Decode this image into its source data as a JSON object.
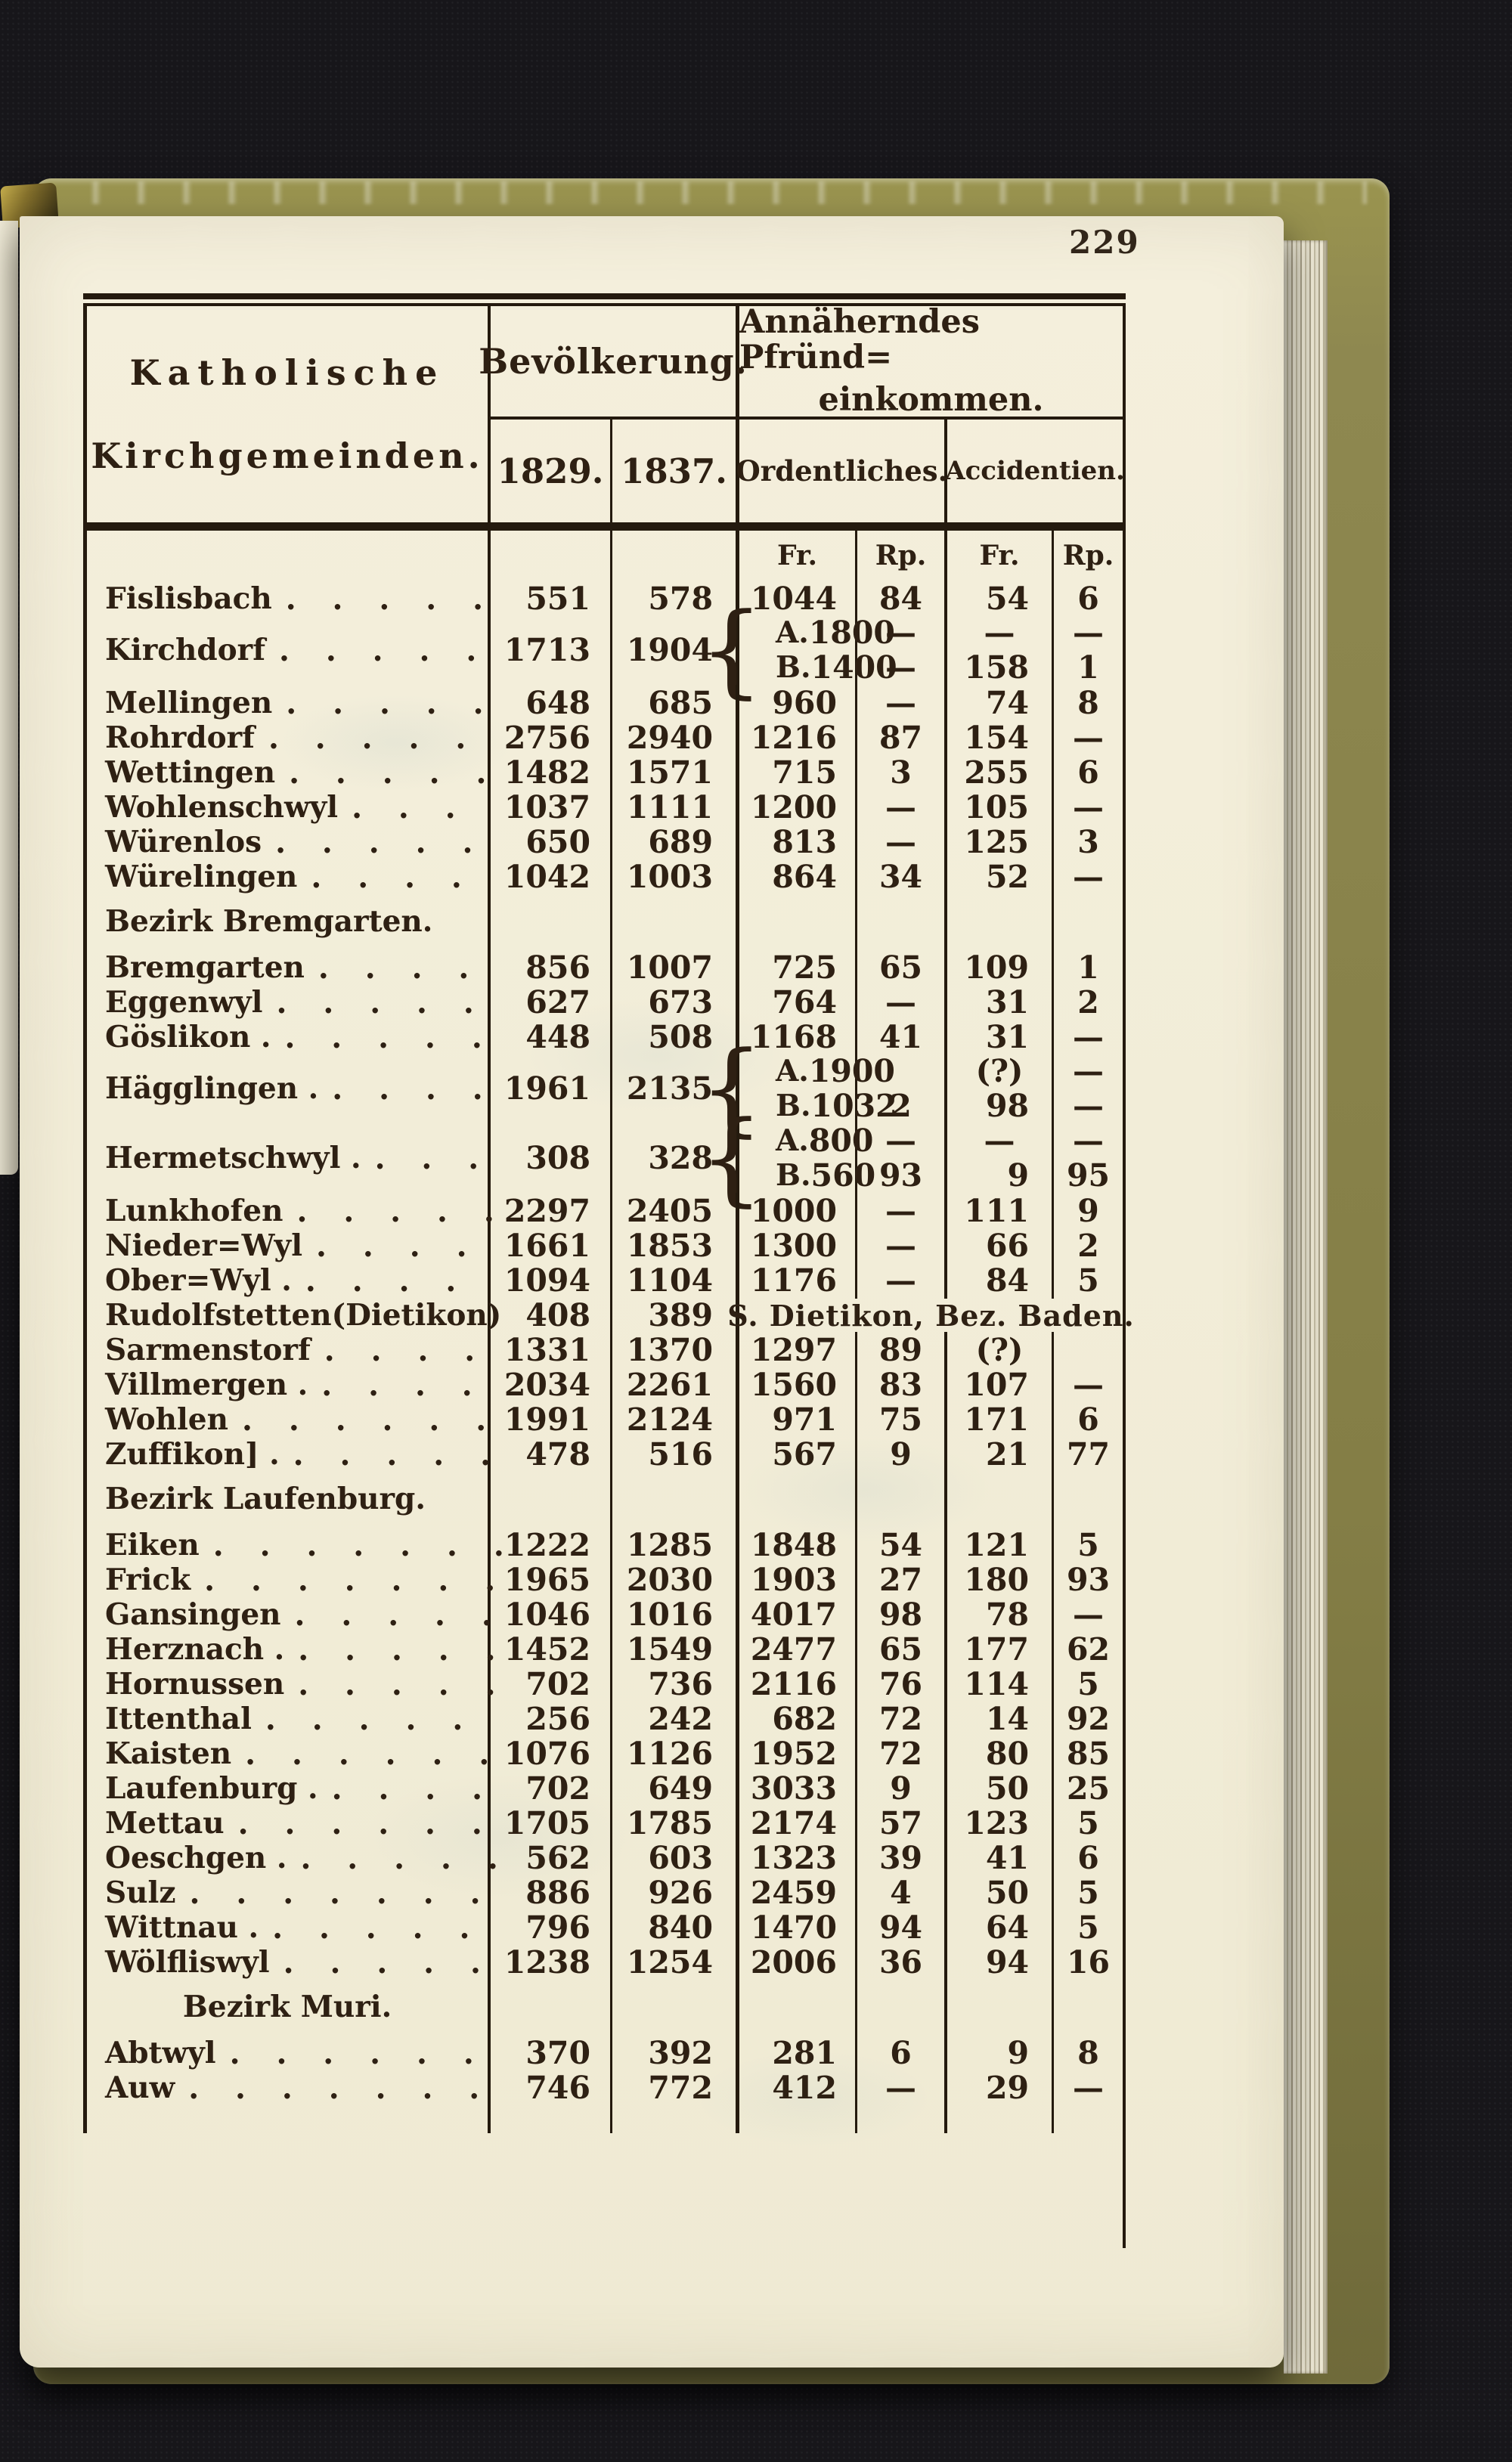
{
  "page_number": "229",
  "colors": {
    "ink": "#2e2013",
    "paper": "#f2edd8",
    "cover_olive": "#8e8850",
    "background": "#17161a"
  },
  "table": {
    "header": {
      "parishes_line1": "Katholische",
      "parishes_line2": "Kirchgemeinden.",
      "population": "Bevölkerung.",
      "income_line1": "Annäherndes Pfründ=",
      "income_line2": "einkommen.",
      "year1": "1829.",
      "year2": "1837.",
      "sub1": "Ordentliches.",
      "sub2": "Accidentien.",
      "units": [
        "Fr.",
        "Rp.",
        "Fr.",
        "Rp."
      ]
    },
    "rows": [
      {
        "type": "row",
        "name": "Fislisbach",
        "dots": ". . . . .",
        "p1829": "551",
        "p1837": "578",
        "ord_fr": "1044",
        "ord_rp": "84",
        "acc_fr": "54",
        "acc_rp": "6"
      },
      {
        "type": "split",
        "name": "Kirchdorf",
        "dots": ". . . . .",
        "p1829": "1713",
        "p1837": "1904",
        "sub": [
          {
            "label": "A.",
            "ord_fr": "1800",
            "ord_rp": "—",
            "acc_fr": "—",
            "acc_rp": "—"
          },
          {
            "label": "B.",
            "ord_fr": "1400",
            "ord_rp": "—",
            "acc_fr": "158",
            "acc_rp": "1"
          }
        ]
      },
      {
        "type": "row",
        "name": "Mellingen",
        "dots": ". . . . .",
        "p1829": "648",
        "p1837": "685",
        "ord_fr": "960",
        "ord_rp": "—",
        "acc_fr": "74",
        "acc_rp": "8"
      },
      {
        "type": "row",
        "name": "Rohrdorf",
        "dots": ". . . . .",
        "p1829": "2756",
        "p1837": "2940",
        "ord_fr": "1216",
        "ord_rp": "87",
        "acc_fr": "154",
        "acc_rp": "—"
      },
      {
        "type": "row",
        "name": "Wettingen",
        "dots": ". . . . .",
        "p1829": "1482",
        "p1837": "1571",
        "ord_fr": "715",
        "ord_rp": "3",
        "acc_fr": "255",
        "acc_rp": "6"
      },
      {
        "type": "row",
        "name": "Wohlenschwyl",
        "dots": ". . .",
        "p1829": "1037",
        "p1837": "1111",
        "ord_fr": "1200",
        "ord_rp": "—",
        "acc_fr": "105",
        "acc_rp": "—"
      },
      {
        "type": "row",
        "name": "Würenlos",
        "dots": ". . . . .",
        "p1829": "650",
        "p1837": "689",
        "ord_fr": "813",
        "ord_rp": "—",
        "acc_fr": "125",
        "acc_rp": "3"
      },
      {
        "type": "row",
        "name": "Würelingen",
        "dots": ". . . .",
        "p1829": "1042",
        "p1837": "1003",
        "ord_fr": "864",
        "ord_rp": "34",
        "acc_fr": "52",
        "acc_rp": "—"
      },
      {
        "type": "section",
        "title": "Bezirk Bremgarten."
      },
      {
        "type": "row",
        "name": "Bremgarten",
        "dots": ". . . .",
        "p1829": "856",
        "p1837": "1007",
        "ord_fr": "725",
        "ord_rp": "65",
        "acc_fr": "109",
        "acc_rp": "1"
      },
      {
        "type": "row",
        "name": "Eggenwyl",
        "dots": ". . . . .",
        "p1829": "627",
        "p1837": "673",
        "ord_fr": "764",
        "ord_rp": "—",
        "acc_fr": "31",
        "acc_rp": "2"
      },
      {
        "type": "row",
        "name": "Göslikon .",
        "dots": ". . . . .",
        "p1829": "448",
        "p1837": "508",
        "ord_fr": "1168",
        "ord_rp": "41",
        "acc_fr": "31",
        "acc_rp": "—"
      },
      {
        "type": "split",
        "name": "Hägglingen .",
        "dots": ". . . .",
        "p1829": "1961",
        "p1837": "2135",
        "sub": [
          {
            "label": "A.",
            "ord_fr": "1900",
            "ord_rp": "",
            "acc_fr": "(?)",
            "acc_rp": "—"
          },
          {
            "label": "B.",
            "ord_fr": "1032",
            "ord_rp": "2",
            "acc_fr": "98",
            "acc_rp": "—"
          }
        ]
      },
      {
        "type": "split",
        "name": "Hermetschwyl .",
        "dots": ". . .",
        "p1829": "308",
        "p1837": "328",
        "sub": [
          {
            "label": "A.",
            "ord_fr": "800",
            "ord_rp": "—",
            "acc_fr": "—",
            "acc_rp": "—"
          },
          {
            "label": "B.",
            "ord_fr": "560",
            "ord_rp": "93",
            "acc_fr": "9",
            "acc_rp": "95"
          }
        ]
      },
      {
        "type": "row",
        "name": "Lunkhofen",
        "dots": ". . . . .",
        "p1829": "2297",
        "p1837": "2405",
        "ord_fr": "1000",
        "ord_rp": "—",
        "acc_fr": "111",
        "acc_rp": "9"
      },
      {
        "type": "row",
        "name": "Nieder=Wyl",
        "dots": ". . . .",
        "p1829": "1661",
        "p1837": "1853",
        "ord_fr": "1300",
        "ord_rp": "—",
        "acc_fr": "66",
        "acc_rp": "2"
      },
      {
        "type": "row",
        "name": "Ober=Wyl .",
        "dots": ". . . .",
        "p1829": "1094",
        "p1837": "1104",
        "ord_fr": "1176",
        "ord_rp": "—",
        "acc_fr": "84",
        "acc_rp": "5"
      },
      {
        "type": "span",
        "name": "Rudolfstetten(Dietikon)",
        "dots": "",
        "p1829": "408",
        "p1837": "389",
        "note": "S. Dietikon, Bez. Baden."
      },
      {
        "type": "row",
        "name": "Sarmenstorf",
        "dots": ". . . .",
        "p1829": "1331",
        "p1837": "1370",
        "ord_fr": "1297",
        "ord_rp": "89",
        "acc_fr": "(?)",
        "acc_rp": ""
      },
      {
        "type": "row",
        "name": "Villmergen .",
        "dots": ". . . .",
        "p1829": "2034",
        "p1837": "2261",
        "ord_fr": "1560",
        "ord_rp": "83",
        "acc_fr": "107",
        "acc_rp": "—"
      },
      {
        "type": "row",
        "name": "Wohlen",
        "dots": ". . . . . .",
        "p1829": "1991",
        "p1837": "2124",
        "ord_fr": "971",
        "ord_rp": "75",
        "acc_fr": "171",
        "acc_rp": "6"
      },
      {
        "type": "row",
        "name": "Zuffikon] .",
        "dots": ". . . . .",
        "p1829": "478",
        "p1837": "516",
        "ord_fr": "567",
        "ord_rp": "9",
        "acc_fr": "21",
        "acc_rp": "77"
      },
      {
        "type": "section",
        "title": "Bezirk Laufenburg."
      },
      {
        "type": "row",
        "name": "Eiken",
        "dots": ". . . . . . .",
        "p1829": "1222",
        "p1837": "1285",
        "ord_fr": "1848",
        "ord_rp": "54",
        "acc_fr": "121",
        "acc_rp": "5"
      },
      {
        "type": "row",
        "name": "Frick",
        "dots": ". . . . . . .",
        "p1829": "1965",
        "p1837": "2030",
        "ord_fr": "1903",
        "ord_rp": "27",
        "acc_fr": "180",
        "acc_rp": "93"
      },
      {
        "type": "row",
        "name": "Gansingen",
        "dots": ". . . . .",
        "p1829": "1046",
        "p1837": "1016",
        "ord_fr": "4017",
        "ord_rp": "98",
        "acc_fr": "78",
        "acc_rp": "—"
      },
      {
        "type": "row",
        "name": "Herznach .",
        "dots": ". . . . .",
        "p1829": "1452",
        "p1837": "1549",
        "ord_fr": "2477",
        "ord_rp": "65",
        "acc_fr": "177",
        "acc_rp": "62"
      },
      {
        "type": "row",
        "name": "Hornussen",
        "dots": ". . . . .",
        "p1829": "702",
        "p1837": "736",
        "ord_fr": "2116",
        "ord_rp": "76",
        "acc_fr": "114",
        "acc_rp": "5"
      },
      {
        "type": "row",
        "name": "Ittenthal",
        "dots": ". . . . .",
        "p1829": "256",
        "p1837": "242",
        "ord_fr": "682",
        "ord_rp": "72",
        "acc_fr": "14",
        "acc_rp": "92"
      },
      {
        "type": "row",
        "name": "Kaisten",
        "dots": ". . . . . .",
        "p1829": "1076",
        "p1837": "1126",
        "ord_fr": "1952",
        "ord_rp": "72",
        "acc_fr": "80",
        "acc_rp": "85"
      },
      {
        "type": "row",
        "name": "Laufenburg .",
        "dots": ". . . .",
        "p1829": "702",
        "p1837": "649",
        "ord_fr": "3033",
        "ord_rp": "9",
        "acc_fr": "50",
        "acc_rp": "25"
      },
      {
        "type": "row",
        "name": "Mettau",
        "dots": ". . . . . .",
        "p1829": "1705",
        "p1837": "1785",
        "ord_fr": "2174",
        "ord_rp": "57",
        "acc_fr": "123",
        "acc_rp": "5"
      },
      {
        "type": "row",
        "name": "Oeschgen .",
        "dots": ". . . . .",
        "p1829": "562",
        "p1837": "603",
        "ord_fr": "1323",
        "ord_rp": "39",
        "acc_fr": "41",
        "acc_rp": "6"
      },
      {
        "type": "row",
        "name": "Sulz",
        "dots": ". . . . . . .",
        "p1829": "886",
        "p1837": "926",
        "ord_fr": "2459",
        "ord_rp": "4",
        "acc_fr": "50",
        "acc_rp": "5"
      },
      {
        "type": "row",
        "name": "Wittnau .",
        "dots": ". . . . .",
        "p1829": "796",
        "p1837": "840",
        "ord_fr": "1470",
        "ord_rp": "94",
        "acc_fr": "64",
        "acc_rp": "5"
      },
      {
        "type": "row",
        "name": "Wölfliswyl",
        "dots": ". . . . .",
        "p1829": "1238",
        "p1837": "1254",
        "ord_fr": "2006",
        "ord_rp": "36",
        "acc_fr": "94",
        "acc_rp": "16"
      },
      {
        "type": "section",
        "title": "Bezirk Muri.",
        "centered": true
      },
      {
        "type": "row",
        "name": "Abtwyl",
        "dots": ". . . . . .",
        "p1829": "370",
        "p1837": "392",
        "ord_fr": "281",
        "ord_rp": "6",
        "acc_fr": "9",
        "acc_rp": "8"
      },
      {
        "type": "row",
        "name": "Auw",
        "dots": ". . . . . . .",
        "p1829": "746",
        "p1837": "772",
        "ord_fr": "412",
        "ord_rp": "—",
        "acc_fr": "29",
        "acc_rp": "—"
      }
    ]
  }
}
